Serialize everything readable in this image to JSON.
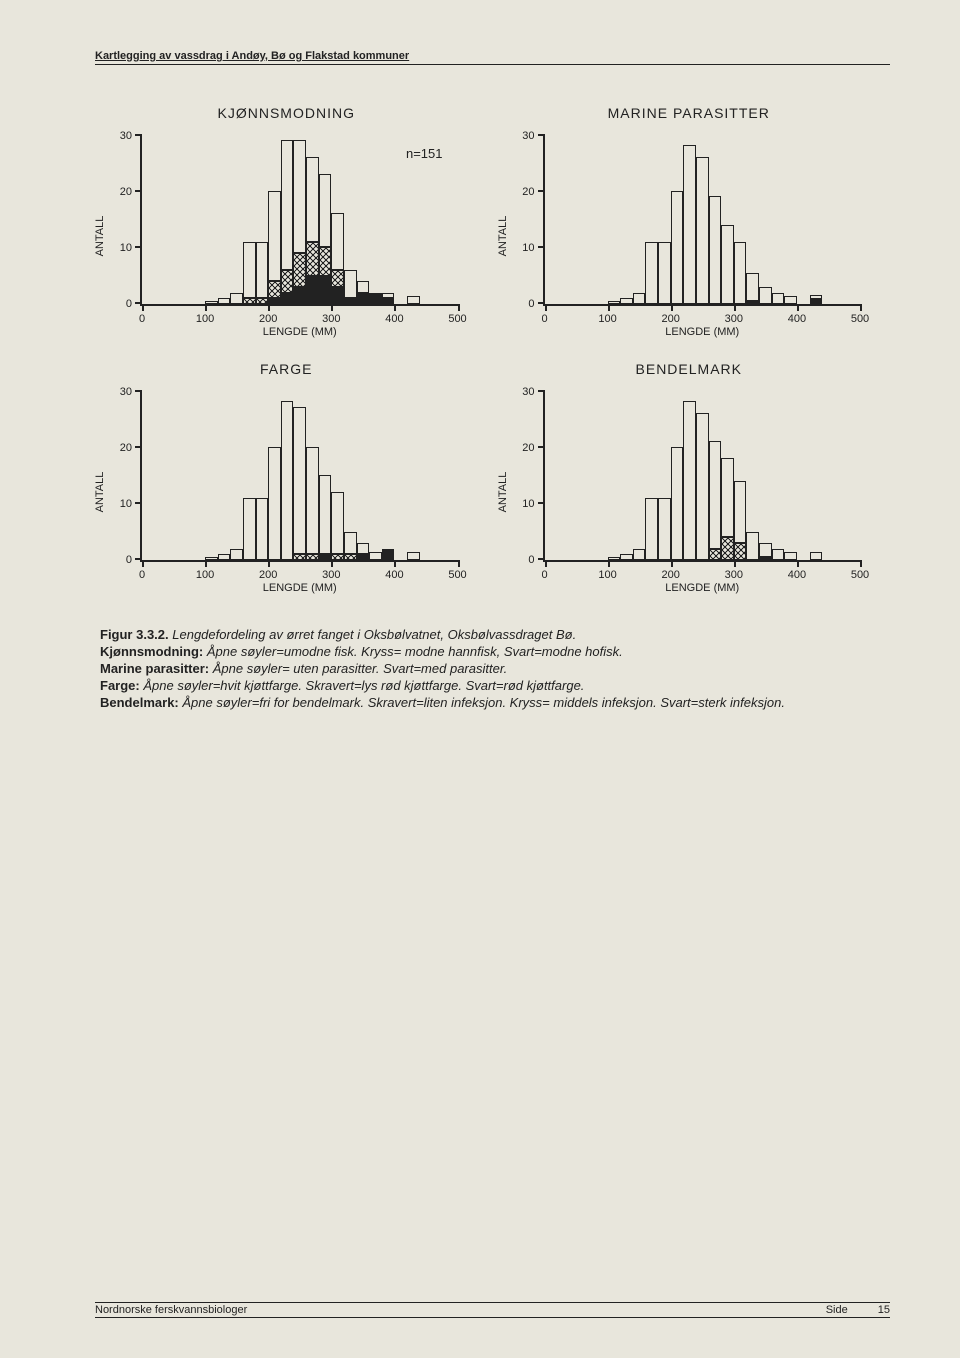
{
  "header": "Kartlegging av vassdrag i Andøy, Bø og Flakstad kommuner",
  "n_label": "n=151",
  "axis": {
    "ylabel": "ANTALL",
    "xlabel": "LENGDE (MM)",
    "ymax": 30,
    "yticks": [
      0,
      10,
      20,
      30
    ],
    "xmax": 500,
    "xticks": [
      0,
      100,
      200,
      300,
      400,
      500
    ]
  },
  "charts": [
    {
      "title": "KJØNNSMODNING",
      "show_n": true,
      "bins": [
        {
          "x": 100,
          "open": 0.5
        },
        {
          "x": 120,
          "open": 1
        },
        {
          "x": 140,
          "open": 2
        },
        {
          "x": 160,
          "open": 10,
          "cross": 1
        },
        {
          "x": 180,
          "open": 10,
          "cross": 1
        },
        {
          "x": 200,
          "open": 16,
          "cross": 3,
          "solid": 1
        },
        {
          "x": 220,
          "open": 23,
          "cross": 4,
          "solid": 2
        },
        {
          "x": 240,
          "open": 20,
          "cross": 6,
          "solid": 3
        },
        {
          "x": 260,
          "open": 15,
          "cross": 6,
          "solid": 5
        },
        {
          "x": 280,
          "open": 13,
          "cross": 5,
          "solid": 5
        },
        {
          "x": 300,
          "open": 10,
          "cross": 3,
          "solid": 3
        },
        {
          "x": 320,
          "open": 5,
          "solid": 1
        },
        {
          "x": 340,
          "open": 2,
          "solid": 2
        },
        {
          "x": 360,
          "solid": 2
        },
        {
          "x": 380,
          "open": 1,
          "solid": 1
        },
        {
          "x": 420,
          "open": 1.5
        }
      ]
    },
    {
      "title": "MARINE PARASITTER",
      "bins": [
        {
          "x": 100,
          "open": 0.5
        },
        {
          "x": 120,
          "open": 1
        },
        {
          "x": 140,
          "open": 2
        },
        {
          "x": 160,
          "open": 11
        },
        {
          "x": 180,
          "open": 11
        },
        {
          "x": 200,
          "open": 20
        },
        {
          "x": 220,
          "open": 28
        },
        {
          "x": 240,
          "open": 26
        },
        {
          "x": 260,
          "open": 19
        },
        {
          "x": 280,
          "open": 14
        },
        {
          "x": 300,
          "open": 11
        },
        {
          "x": 320,
          "open": 5,
          "solid": 0.5
        },
        {
          "x": 340,
          "open": 3
        },
        {
          "x": 360,
          "open": 2
        },
        {
          "x": 380,
          "open": 1.5
        },
        {
          "x": 420,
          "open": 0.8,
          "solid": 0.8
        }
      ]
    },
    {
      "title": "FARGE",
      "bins": [
        {
          "x": 100,
          "open": 0.5
        },
        {
          "x": 120,
          "open": 1
        },
        {
          "x": 140,
          "open": 2
        },
        {
          "x": 160,
          "open": 11
        },
        {
          "x": 180,
          "open": 11
        },
        {
          "x": 200,
          "open": 20
        },
        {
          "x": 220,
          "open": 28
        },
        {
          "x": 240,
          "open": 26,
          "cross": 1
        },
        {
          "x": 260,
          "open": 19,
          "cross": 1
        },
        {
          "x": 280,
          "open": 14,
          "solid": 1
        },
        {
          "x": 300,
          "open": 11,
          "cross": 1
        },
        {
          "x": 320,
          "open": 4,
          "cross": 1
        },
        {
          "x": 340,
          "open": 2,
          "solid": 1
        },
        {
          "x": 360,
          "open": 1.5
        },
        {
          "x": 380,
          "solid": 2
        },
        {
          "x": 420,
          "open": 1.5
        }
      ]
    },
    {
      "title": "BENDELMARK",
      "bins": [
        {
          "x": 100,
          "open": 0.5
        },
        {
          "x": 120,
          "open": 1
        },
        {
          "x": 140,
          "open": 2
        },
        {
          "x": 160,
          "open": 11
        },
        {
          "x": 180,
          "open": 11
        },
        {
          "x": 200,
          "open": 20
        },
        {
          "x": 220,
          "open": 28
        },
        {
          "x": 240,
          "open": 26
        },
        {
          "x": 260,
          "open": 19,
          "cross": 2
        },
        {
          "x": 280,
          "open": 14,
          "cross": 4
        },
        {
          "x": 300,
          "open": 11,
          "cross": 3
        },
        {
          "x": 320,
          "open": 5
        },
        {
          "x": 340,
          "open": 2.5,
          "solid": 0.5
        },
        {
          "x": 360,
          "open": 2
        },
        {
          "x": 380,
          "open": 1.5
        },
        {
          "x": 420,
          "open": 1.5
        }
      ]
    }
  ],
  "caption": {
    "lead": "Figur 3.3.2.",
    "line1": "Lengdefordeling av ørret fanget i Oksbølvatnet, Oksbølvassdraget Bø.",
    "k_lead": "Kjønnsmodning:",
    "k_text": "Åpne søyler=umodne fisk. Kryss= modne hannfisk, Svart=modne hofisk.",
    "m_lead": "Marine parasitter:",
    "m_text": "Åpne søyler= uten parasitter. Svart=med parasitter.",
    "f_lead": "Farge:",
    "f_text": "Åpne søyler=hvit kjøttfarge. Skravert=lys rød kjøttfarge. Svart=rød kjøttfarge.",
    "b_lead": "Bendelmark:",
    "b_text": "Åpne søyler=fri for bendelmark. Skravert=liten infeksjon. Kryss= middels infeksjon. Svart=sterk infeksjon."
  },
  "footer": {
    "left": "Nordnorske ferskvannsbiologer",
    "side": "Side",
    "page": "15"
  },
  "style": {
    "bar_width_mm": 20,
    "colors": {
      "ink": "#222222",
      "bg": "#e8e6dc"
    }
  }
}
